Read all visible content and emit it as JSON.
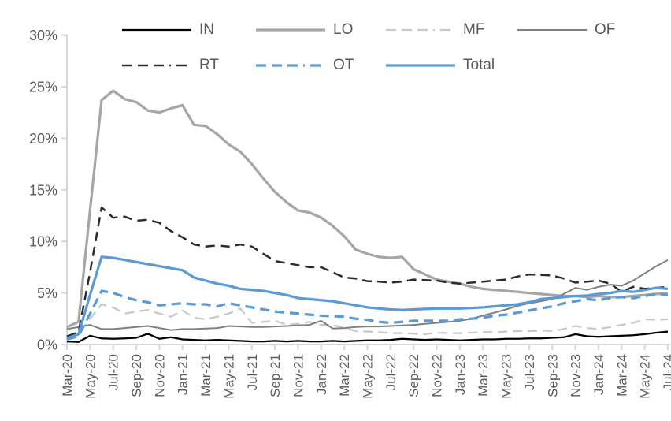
{
  "chart_data": {
    "type": "line",
    "title": "",
    "xlabel": "",
    "ylabel": "",
    "ylim": [
      0,
      30
    ],
    "grid": false,
    "legend_position": "top",
    "legend_rows": [
      [
        "IN",
        "LO",
        "MF",
        "OF"
      ],
      [
        "RT",
        "OT",
        "Total"
      ]
    ],
    "axis_color": "#d6d6d6",
    "label_color": "#595959",
    "y_tick_labels": [
      "0%",
      "5%",
      "10%",
      "15%",
      "20%",
      "25%",
      "30%"
    ],
    "x_tick_labels": [
      "Mar-20",
      "May-20",
      "Jul-20",
      "Sep-20",
      "Nov-20",
      "Jan-21",
      "Mar-21",
      "May-21",
      "Jul-21",
      "Sep-21",
      "Nov-21",
      "Jan-22",
      "Mar-22",
      "May-22",
      "Jul-22",
      "Sep-22",
      "Nov-22",
      "Jan-23",
      "Mar-23",
      "May-23",
      "Jul-23",
      "Sep-23",
      "Nov-23",
      "Jan-24",
      "Mar-24",
      "May-24",
      "Jul-24"
    ],
    "x": [
      "Mar-20",
      "Apr-20",
      "May-20",
      "Jun-20",
      "Jul-20",
      "Aug-20",
      "Sep-20",
      "Oct-20",
      "Nov-20",
      "Dec-20",
      "Jan-21",
      "Feb-21",
      "Mar-21",
      "Apr-21",
      "May-21",
      "Jun-21",
      "Jul-21",
      "Aug-21",
      "Sep-21",
      "Oct-21",
      "Nov-21",
      "Dec-21",
      "Jan-22",
      "Feb-22",
      "Mar-22",
      "Apr-22",
      "May-22",
      "Jun-22",
      "Jul-22",
      "Aug-22",
      "Sep-22",
      "Oct-22",
      "Nov-22",
      "Dec-22",
      "Jan-23",
      "Feb-23",
      "Mar-23",
      "Apr-23",
      "May-23",
      "Jun-23",
      "Jul-23",
      "Aug-23",
      "Sep-23",
      "Oct-23",
      "Nov-23",
      "Dec-23",
      "Jan-24",
      "Feb-24",
      "Mar-24",
      "Apr-24",
      "May-24",
      "Jun-24",
      "Jul-24"
    ],
    "series": [
      {
        "name": "IN",
        "color": "#000000",
        "dash": "solid",
        "width": 2.25,
        "values": [
          0.3,
          0.25,
          0.85,
          0.6,
          0.55,
          0.6,
          0.65,
          1.05,
          0.55,
          0.7,
          0.5,
          0.45,
          0.4,
          0.45,
          0.4,
          0.35,
          0.3,
          0.3,
          0.35,
          0.3,
          0.35,
          0.3,
          0.3,
          0.35,
          0.3,
          0.35,
          0.4,
          0.4,
          0.45,
          0.55,
          0.5,
          0.45,
          0.5,
          0.45,
          0.4,
          0.45,
          0.5,
          0.5,
          0.55,
          0.55,
          0.6,
          0.6,
          0.65,
          0.7,
          1.0,
          0.8,
          0.75,
          0.8,
          0.85,
          0.9,
          1.0,
          1.15,
          1.25
        ]
      },
      {
        "name": "LO",
        "color": "#a6a6a6",
        "dash": "solid",
        "width": 3.25,
        "values": [
          1.7,
          2.2,
          13.0,
          23.7,
          24.6,
          23.8,
          23.5,
          22.7,
          22.5,
          22.9,
          23.2,
          21.3,
          21.2,
          20.4,
          19.4,
          18.7,
          17.5,
          16.1,
          14.8,
          13.8,
          13.0,
          12.8,
          12.3,
          11.5,
          10.5,
          9.2,
          8.8,
          8.5,
          8.4,
          8.5,
          7.3,
          6.8,
          6.3,
          6.1,
          5.9,
          5.6,
          5.4,
          5.3,
          5.2,
          5.1,
          5.0,
          4.9,
          4.8,
          4.7,
          4.7,
          4.6,
          4.7,
          4.6,
          4.6,
          4.7,
          4.8,
          4.9,
          5.0
        ]
      },
      {
        "name": "MF",
        "color": "#c8c8c8",
        "dash": "dashed",
        "width": 2.25,
        "values": [
          0.8,
          1.0,
          2.5,
          3.9,
          3.6,
          3.0,
          3.2,
          3.35,
          3.0,
          2.7,
          3.3,
          2.6,
          2.45,
          2.7,
          3.0,
          3.5,
          2.1,
          2.2,
          2.3,
          1.9,
          2.0,
          2.2,
          1.9,
          1.9,
          1.6,
          1.3,
          1.25,
          1.2,
          1.1,
          1.1,
          1.05,
          1.0,
          1.15,
          1.1,
          1.1,
          1.15,
          1.2,
          1.2,
          1.25,
          1.3,
          1.3,
          1.35,
          1.3,
          1.5,
          1.8,
          1.6,
          1.5,
          1.7,
          1.9,
          2.1,
          2.45,
          2.4,
          2.45
        ]
      },
      {
        "name": "OF",
        "color": "#7f7f7f",
        "dash": "solid",
        "width": 2,
        "values": [
          1.5,
          1.7,
          1.9,
          1.5,
          1.5,
          1.6,
          1.7,
          1.8,
          1.6,
          1.4,
          1.5,
          1.5,
          1.55,
          1.6,
          1.8,
          1.75,
          1.7,
          1.7,
          1.75,
          1.8,
          1.85,
          1.9,
          2.3,
          1.55,
          1.6,
          1.7,
          1.75,
          1.75,
          1.8,
          1.85,
          1.9,
          2.0,
          2.1,
          2.2,
          2.3,
          2.5,
          2.8,
          3.1,
          3.4,
          3.75,
          4.0,
          4.2,
          4.4,
          4.9,
          5.5,
          5.3,
          5.6,
          5.8,
          5.7,
          6.2,
          6.9,
          7.6,
          8.2
        ]
      },
      {
        "name": "RT",
        "color": "#2b2b2b",
        "dash": "dashed",
        "width": 2.5,
        "values": [
          0.8,
          1.2,
          7.0,
          13.3,
          12.3,
          12.4,
          12.0,
          12.1,
          11.8,
          11.0,
          10.4,
          9.7,
          9.5,
          9.6,
          9.5,
          9.7,
          9.5,
          8.8,
          8.1,
          7.9,
          7.7,
          7.5,
          7.5,
          7.0,
          6.5,
          6.4,
          6.15,
          6.1,
          6.0,
          6.1,
          6.3,
          6.25,
          6.2,
          6.0,
          5.9,
          6.0,
          6.1,
          6.2,
          6.3,
          6.6,
          6.8,
          6.75,
          6.7,
          6.4,
          6.0,
          6.1,
          6.2,
          5.9,
          5.1,
          5.6,
          5.4,
          5.5,
          5.6
        ]
      },
      {
        "name": "OT",
        "color": "#5b9bd5",
        "dash": "dashed",
        "width": 3.25,
        "values": [
          0.5,
          0.8,
          3.0,
          5.2,
          5.0,
          4.6,
          4.3,
          4.1,
          3.8,
          3.9,
          4.0,
          3.9,
          3.9,
          3.7,
          4.0,
          3.8,
          3.6,
          3.4,
          3.2,
          3.1,
          3.0,
          2.9,
          2.8,
          2.75,
          2.7,
          2.5,
          2.4,
          2.2,
          2.1,
          2.2,
          2.3,
          2.3,
          2.3,
          2.3,
          2.45,
          2.5,
          2.6,
          2.8,
          2.9,
          3.1,
          3.3,
          3.5,
          3.7,
          4.0,
          4.2,
          4.4,
          4.3,
          4.5,
          4.6,
          4.5,
          4.7,
          4.9,
          4.8
        ]
      },
      {
        "name": "Total",
        "color": "#5b9bd5",
        "dash": "solid",
        "width": 3.25,
        "values": [
          0.6,
          1.0,
          4.8,
          8.5,
          8.4,
          8.2,
          8.0,
          7.8,
          7.6,
          7.4,
          7.2,
          6.5,
          6.2,
          5.9,
          5.7,
          5.4,
          5.3,
          5.2,
          5.0,
          4.8,
          4.5,
          4.4,
          4.3,
          4.2,
          4.0,
          3.8,
          3.6,
          3.5,
          3.4,
          3.35,
          3.4,
          3.45,
          3.5,
          3.5,
          3.5,
          3.55,
          3.6,
          3.7,
          3.8,
          3.9,
          4.1,
          4.4,
          4.5,
          4.6,
          4.7,
          4.75,
          4.9,
          5.0,
          5.2,
          5.1,
          5.3,
          5.5,
          5.4
        ]
      }
    ]
  }
}
